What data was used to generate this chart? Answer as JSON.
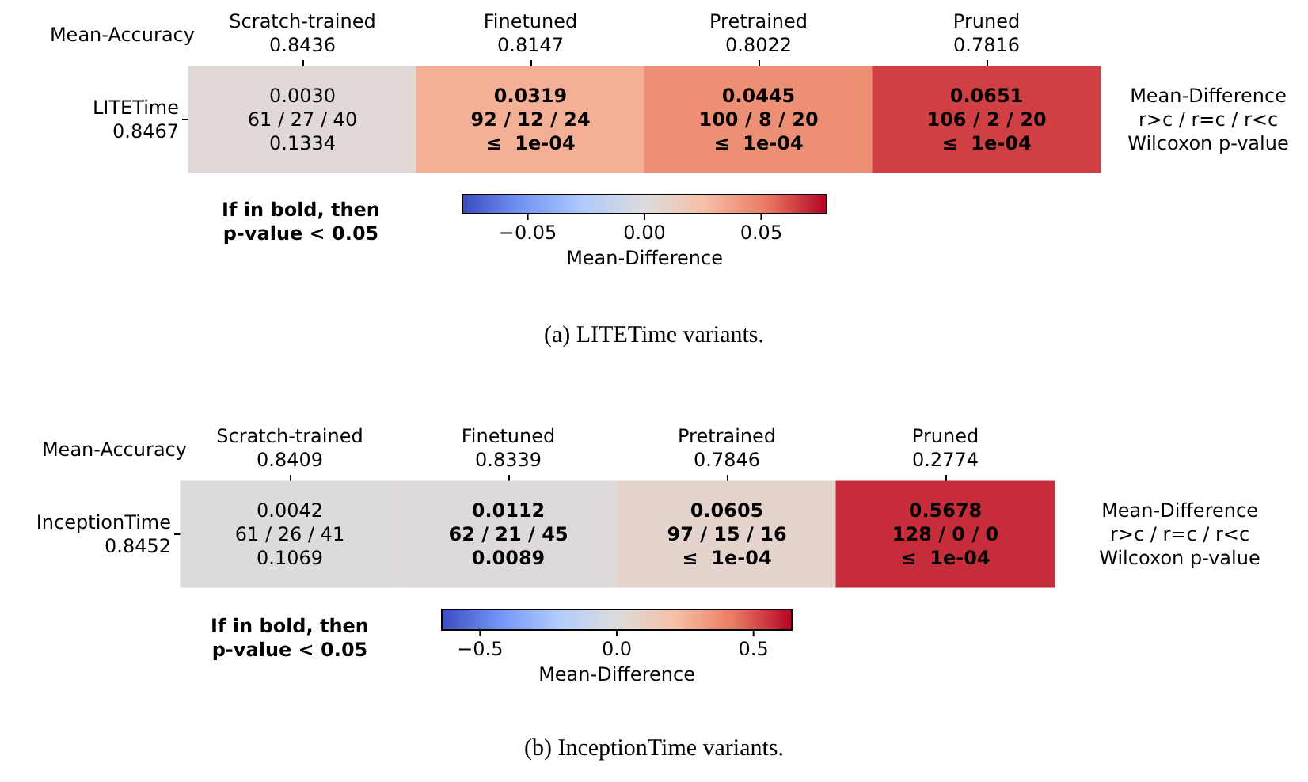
{
  "chart_data": [
    {
      "type": "heatmap",
      "title": "(a) LITETime variants.",
      "xlabel": "Mean-Accuracy",
      "clabel": "Mean-Difference",
      "annotations": [
        "If in bold, then\np-value < 0.05"
      ],
      "categories": [
        "Scratch-trained\n0.8436",
        "Finetuned\n0.8147",
        "Pretrained\n0.8022",
        "Pruned\n0.7816"
      ],
      "y_categories": [
        "LITETime\n0.8467"
      ],
      "y2_categories": [
        "Mean-Difference\nr>c / r=c / r<c\nWilcoxon p-value"
      ],
      "cells": [
        [
          0.003,
          0.0319,
          0.0445,
          0.0651
        ]
      ],
      "cell_labels": [
        [
          "0.0030\n61 / 27 / 40\n0.1334",
          "0.0319\n92 / 12 / 24\n≤  1e-04",
          "0.0445\n100 / 8 / 20\n≤  1e-04",
          "0.0651\n106 / 2 / 20\n≤  1e-04"
        ]
      ],
      "clim": [
        -0.078,
        0.078
      ],
      "cticks": [
        {
          "value": -0.05,
          "label": "−0.05"
        },
        {
          "value": 0,
          "label": "0.00"
        },
        {
          "value": 0.05,
          "label": "0.05"
        }
      ]
    },
    {
      "type": "heatmap",
      "title": "(b) InceptionTime variants.",
      "xlabel": "Mean-Accuracy",
      "clabel": "Mean-Difference",
      "annotations": [
        "If in bold, then\np-value < 0.05"
      ],
      "categories": [
        "Scratch-trained\n0.8409",
        "Finetuned\n0.8339",
        "Pretrained\n0.7846",
        "Pruned\n0.2774"
      ],
      "y_categories": [
        "InceptionTime\n0.8452"
      ],
      "y2_categories": [
        "Mean-Difference\nr>c / r=c / r<c\nWilcoxon p-value"
      ],
      "cells": [
        [
          0.0042,
          0.0112,
          0.0605,
          0.5678
        ]
      ],
      "cell_labels": [
        [
          "0.0042\n61 / 26 / 41\n0.1069",
          "0.0112\n62 / 21 / 45\n0.0089",
          "0.0605\n97 / 15 / 16\n≤  1e-04",
          "0.5678\n128 / 0 / 0\n≤  1e-04"
        ]
      ],
      "clim": [
        -0.64,
        0.64
      ],
      "cticks": [
        {
          "value": -0.5,
          "label": "−0.5"
        },
        {
          "value": 0,
          "label": "0.0"
        },
        {
          "value": 0.5,
          "label": "0.5"
        }
      ]
    }
  ]
}
